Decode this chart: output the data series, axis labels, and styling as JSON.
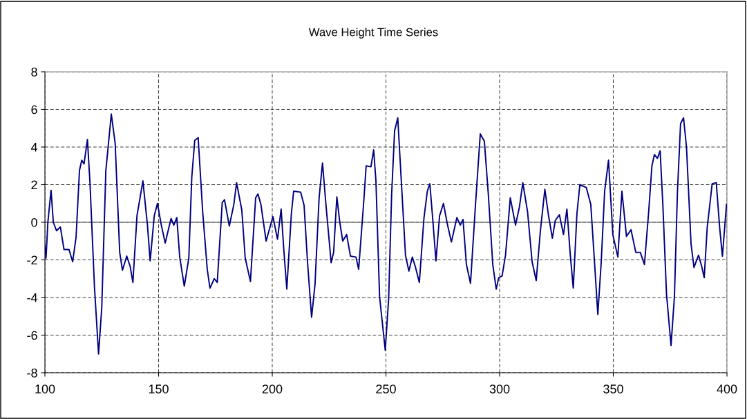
{
  "chart_data": {
    "type": "line",
    "title": "Wave Height Time Series",
    "x": [
      100,
      100.5,
      101.3,
      102.7,
      103.7,
      105.1,
      106.8,
      108.4,
      110.6,
      112.2,
      113.7,
      115.2,
      116.2,
      117.2,
      118.7,
      119.8,
      121.8,
      123.6,
      125.0,
      126.8,
      129.2,
      130.9,
      132.9,
      134.1,
      136.0,
      137.5,
      138.7,
      140.5,
      143.1,
      145.1,
      146.3,
      148.1,
      149.5,
      151.2,
      152.9,
      155.5,
      156.7,
      158.0,
      159.3,
      161.3,
      163.3,
      164.6,
      165.9,
      167.4,
      169.4,
      171.4,
      172.6,
      174.5,
      175.8,
      178.0,
      179.0,
      181.1,
      183.1,
      184.3,
      186.6,
      188.1,
      190.4,
      192.7,
      193.7,
      195.0,
      197.3,
      200.3,
      202.3,
      203.9,
      205.1,
      206.4,
      208.4,
      209.4,
      212.5,
      214.0,
      215.5,
      217.3,
      218.8,
      220.6,
      222.1,
      223.6,
      225.9,
      227.0,
      228.4,
      229.7,
      231.0,
      232.7,
      234.4,
      236.8,
      238.0,
      240.3,
      241.3,
      243.4,
      244.6,
      245.6,
      247.2,
      249.7,
      251.2,
      252.5,
      253.8,
      255.2,
      256.5,
      258.6,
      260.1,
      261.6,
      262.9,
      264.7,
      266.7,
      268.2,
      269.3,
      270.4,
      272.0,
      273.6,
      275.3,
      277.1,
      278.8,
      281.2,
      282.7,
      283.9,
      285.4,
      287.2,
      289.4,
      291.5,
      293.3,
      295.0,
      297.0,
      298.5,
      299.6,
      301.1,
      302.6,
      304.7,
      307.0,
      308.7,
      310.2,
      312.3,
      314.3,
      316.1,
      317.9,
      319.9,
      321.4,
      323.2,
      324.5,
      326.3,
      328.1,
      329.6,
      331.1,
      332.4,
      334.0,
      335.3,
      338.1,
      340.1,
      341.6,
      343.2,
      344.7,
      346.2,
      347.9,
      349.8,
      352.0,
      353.8,
      355.8,
      357.8,
      359.9,
      361.9,
      363.7,
      365.5,
      367.0,
      368.1,
      369.4,
      370.6,
      371.8,
      373.4,
      375.4,
      376.9,
      378.2,
      379.6,
      380.9,
      382.2,
      384.2,
      385.5,
      387.5,
      388.9,
      390.0,
      391.3,
      393.5,
      395.3,
      396.8,
      398.0,
      399.8
    ],
    "series": [
      {
        "color": "#000080",
        "values": [
          -1.2,
          -1.9,
          0,
          1.7,
          0,
          -0.45,
          -0.25,
          -1.45,
          -1.45,
          -2.1,
          -0.8,
          2.75,
          3.3,
          3.1,
          4.4,
          2.15,
          -3.45,
          -7.0,
          -4.55,
          2.75,
          5.75,
          4.2,
          -1.6,
          -2.55,
          -1.8,
          -2.35,
          -3.2,
          0.35,
          2.2,
          -0.15,
          -2.05,
          0.35,
          1.0,
          -0.15,
          -1.1,
          0.2,
          -0.15,
          0.25,
          -1.85,
          -3.4,
          -1.9,
          2.4,
          4.35,
          4.5,
          0.55,
          -2.5,
          -3.5,
          -3.0,
          -3.2,
          1.05,
          1.2,
          -0.2,
          0.95,
          2.1,
          0.65,
          -1.9,
          -3.15,
          1.3,
          1.5,
          0.95,
          -1.0,
          0.3,
          -0.9,
          0.7,
          -1.5,
          -3.55,
          0.45,
          1.65,
          1.6,
          0.9,
          -2.1,
          -5.05,
          -3.3,
          1.3,
          3.15,
          0.95,
          -2.15,
          -1.6,
          1.35,
          0,
          -1.0,
          -0.65,
          -1.8,
          -1.85,
          -2.5,
          1.2,
          3.0,
          2.95,
          3.85,
          2.2,
          -3.95,
          -6.8,
          -4.05,
          1.45,
          4.85,
          5.55,
          2.75,
          -1.75,
          -2.6,
          -1.85,
          -2.35,
          -3.2,
          0.2,
          1.65,
          2.05,
          0.45,
          -2.05,
          0.35,
          1.0,
          -0.15,
          -1.05,
          0.25,
          -0.15,
          0.15,
          -2.25,
          -3.25,
          0.95,
          4.7,
          4.3,
          1.55,
          -2.25,
          -3.55,
          -2.95,
          -2.85,
          -1.75,
          1.3,
          -0.15,
          0.8,
          2.1,
          0.55,
          -2.1,
          -3.1,
          -0.5,
          1.75,
          0.45,
          -0.85,
          0.1,
          0.4,
          -0.65,
          0.7,
          -1.75,
          -3.5,
          0.45,
          2.0,
          1.85,
          0.95,
          -1.85,
          -4.9,
          -2.1,
          1.65,
          3.3,
          -0.65,
          -1.85,
          1.65,
          -0.75,
          -0.4,
          -1.6,
          -1.6,
          -2.25,
          0.45,
          3.0,
          3.6,
          3.4,
          3.8,
          0.95,
          -3.8,
          -6.55,
          -3.95,
          1.55,
          5.25,
          5.55,
          4.0,
          -1.15,
          -2.4,
          -1.75,
          -2.35,
          -2.95,
          -0.3,
          2.05,
          2.1,
          -0.3,
          -1.8,
          0.95
        ]
      }
    ],
    "xlim": [
      100,
      400
    ],
    "xticks": [
      100,
      150,
      200,
      250,
      300,
      350,
      400
    ],
    "ylim": [
      -8,
      8
    ],
    "yticks": [
      -8,
      -6,
      -4,
      -2,
      0,
      2,
      4,
      6,
      8
    ],
    "grid": true,
    "line_style": "solid",
    "marker": "none",
    "ref_lines": [
      {
        "axis": "y",
        "value": 0,
        "color": "#808080",
        "line_style": "solid"
      }
    ]
  }
}
